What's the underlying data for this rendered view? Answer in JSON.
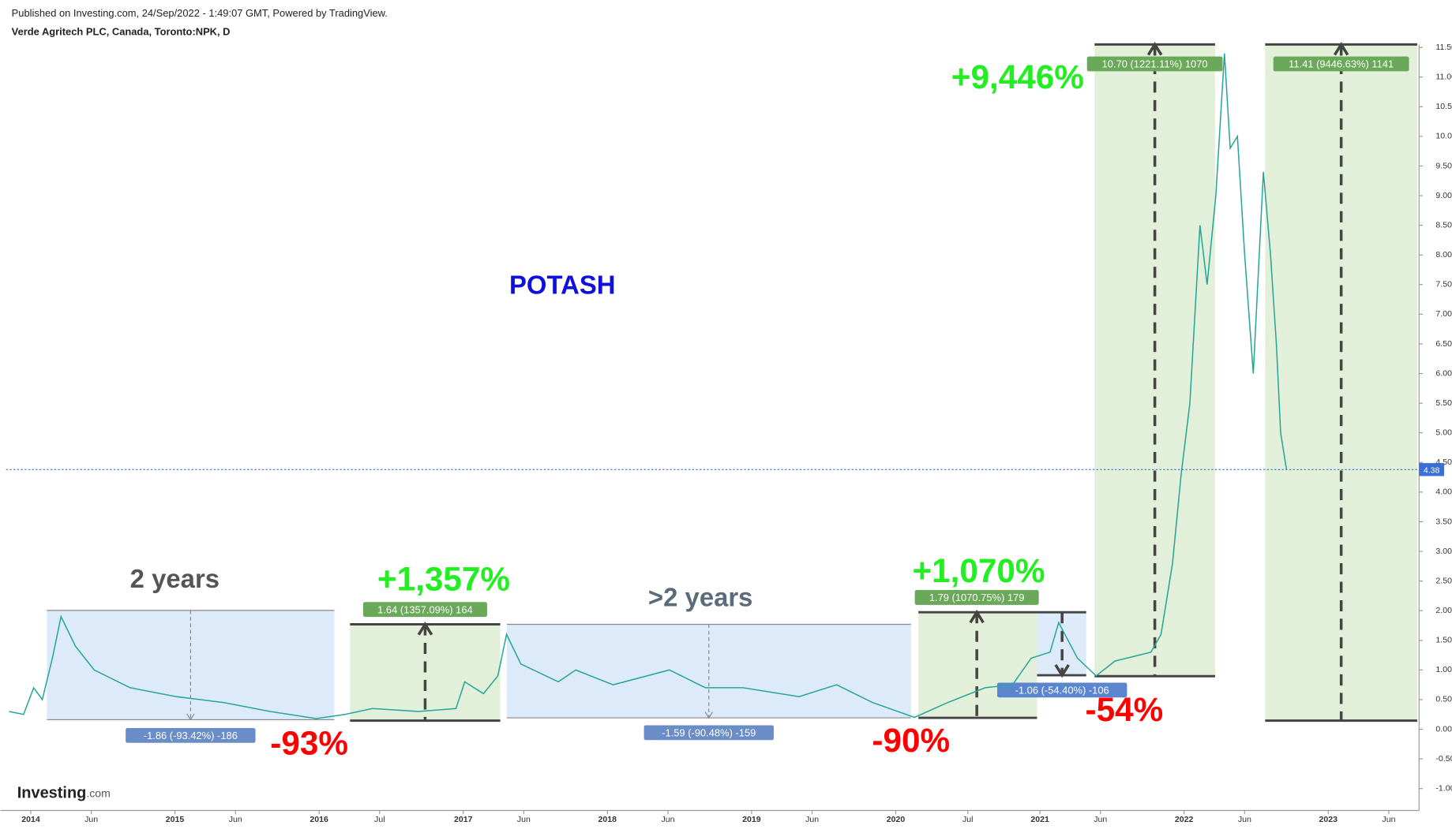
{
  "chart_data": {
    "type": "line",
    "title": "Verde Agritech PLC, Canada, Toronto:NPK, D",
    "subtitle": "Published on Investing.com, 24/Sep/2022 - 1:49:07 GMT, Powered by TradingView.",
    "logo": {
      "main": "Investing",
      "suffix": ".com"
    },
    "series": [
      {
        "name": "NPK",
        "color": "#26a69a",
        "x": [
          2013.85,
          2013.95,
          2014.02,
          2014.08,
          2014.15,
          2014.21,
          2014.31,
          2014.44,
          2014.69,
          2015.01,
          2015.34,
          2015.66,
          2015.98,
          2016.18,
          2016.37,
          2016.69,
          2016.95,
          2017.01,
          2017.14,
          2017.24,
          2017.3,
          2017.4,
          2017.66,
          2017.78,
          2018.04,
          2018.43,
          2018.68,
          2018.94,
          2019.33,
          2019.59,
          2019.84,
          2020.13,
          2020.36,
          2020.62,
          2020.81,
          2020.94,
          2021.07,
          2021.13,
          2021.26,
          2021.39,
          2021.52,
          2021.77,
          2021.84,
          2021.92,
          2021.98,
          2022.04,
          2022.11,
          2022.16,
          2022.22,
          2022.28,
          2022.32,
          2022.37,
          2022.42,
          2022.48,
          2022.55,
          2022.6,
          2022.64,
          2022.67,
          2022.71
        ],
        "values": [
          0.3,
          0.25,
          0.7,
          0.5,
          1.2,
          1.9,
          1.4,
          1.0,
          0.7,
          0.55,
          0.45,
          0.3,
          0.18,
          0.25,
          0.35,
          0.3,
          0.35,
          0.8,
          0.6,
          0.9,
          1.6,
          1.1,
          0.8,
          1.0,
          0.75,
          1.0,
          0.7,
          0.7,
          0.55,
          0.75,
          0.45,
          0.2,
          0.45,
          0.7,
          0.75,
          1.2,
          1.3,
          1.8,
          1.2,
          0.9,
          1.15,
          1.3,
          1.6,
          2.8,
          4.3,
          5.5,
          8.5,
          7.5,
          9.0,
          11.4,
          9.8,
          10.0,
          8.0,
          6.0,
          9.4,
          8.0,
          6.5,
          5.0,
          4.38
        ]
      }
    ],
    "xlim": [
      2013.79,
      2023.63
    ],
    "xticks": [
      2014,
      {
        "value": 2014.42,
        "label": "Jun"
      },
      2015,
      {
        "value": 2015.42,
        "label": "Jun"
      },
      2016,
      {
        "value": 2016.42,
        "label": "Jul"
      },
      2017,
      {
        "value": 2017.42,
        "label": "Jun"
      },
      2018,
      {
        "value": 2018.42,
        "label": "Jun"
      },
      2019,
      {
        "value": 2019.42,
        "label": "Jun"
      },
      2020,
      {
        "value": 2020.5,
        "label": "Jul"
      },
      2021,
      {
        "value": 2021.42,
        "label": "Jun"
      },
      2022,
      {
        "value": 2022.42,
        "label": "Jun"
      },
      2023,
      {
        "value": 2023.42,
        "label": "Jun"
      }
    ],
    "ylim": [
      -1.37,
      11.55
    ],
    "yticks": [
      {
        "value": -1,
        "label": "-1.00"
      },
      {
        "value": -0.5,
        "label": "-0.50"
      },
      {
        "value": 0,
        "label": "0.00"
      },
      {
        "value": 0.5,
        "label": "0.50"
      },
      {
        "value": 1,
        "label": "1.00"
      },
      {
        "value": 1.5,
        "label": "1.50"
      },
      {
        "value": 2,
        "label": "2.00"
      },
      {
        "value": 2.5,
        "label": "2.50"
      },
      {
        "value": 3,
        "label": "3.00"
      },
      {
        "value": 3.5,
        "label": "3.50"
      },
      {
        "value": 4,
        "label": "4.00"
      },
      {
        "value": 4.5,
        "label": "4.50"
      },
      {
        "value": 5,
        "label": "5.00"
      },
      {
        "value": 5.5,
        "label": "5.50"
      },
      {
        "value": 6,
        "label": "6.00"
      },
      {
        "value": 6.5,
        "label": "6.50"
      },
      {
        "value": 7,
        "label": "7.00"
      },
      {
        "value": 7.5,
        "label": "7.50"
      },
      {
        "value": 8,
        "label": "8.00"
      },
      {
        "value": 8.5,
        "label": "8.50"
      },
      {
        "value": 9,
        "label": "9.00"
      },
      {
        "value": 9.5,
        "label": "9.50"
      },
      {
        "value": 10,
        "label": "10.00"
      },
      {
        "value": 10.5,
        "label": "10.50"
      },
      {
        "value": 11,
        "label": "11.00"
      },
      {
        "value": 11.5,
        "label": "11.50"
      }
    ],
    "annotations": {
      "heading": "POTASH",
      "measures": [
        "-1.86 (-93.42%) -186",
        "1.64 (1357.09%) 164",
        "-1.59 (-90.48%) -159",
        "1.79 (1070.75%) 179",
        "-1.06 (-54.40%) -106",
        "10.70 (1221.11%) 1070",
        "11.41 (9446.63%) 1141"
      ],
      "callouts": [
        "2 years",
        "+1,357%",
        ">2 years",
        "+1,070%",
        "+9,446%",
        "-93%",
        "-90%",
        "-54%"
      ]
    }
  }
}
